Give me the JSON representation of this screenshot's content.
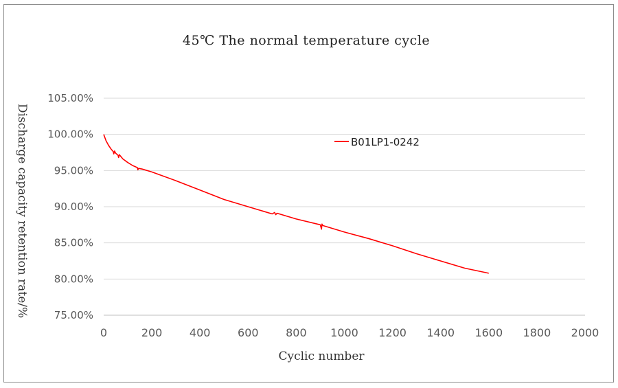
{
  "chart_data": {
    "type": "line",
    "title": "45℃ The normal temperature cycle",
    "xlabel": "Cyclic number",
    "ylabel": "Discharge capacity retention rate/%",
    "xlim": [
      0,
      2000
    ],
    "ylim": [
      75,
      105
    ],
    "x_ticks": [
      "0",
      "200",
      "400",
      "600",
      "800",
      "1000",
      "1200",
      "1400",
      "1600",
      "1800",
      "2000"
    ],
    "y_ticks": [
      "105.00%",
      "100.00%",
      "95.00%",
      "90.00%",
      "85.00%",
      "80.00%",
      "75.00%"
    ],
    "grid": true,
    "legend_position": "top-right",
    "series": [
      {
        "name": "B01LP1-0242",
        "color": "#ff0000",
        "x": [
          0,
          10,
          20,
          30,
          40,
          42,
          45,
          50,
          60,
          62,
          65,
          80,
          100,
          120,
          140,
          142,
          145,
          160,
          200,
          300,
          400,
          500,
          600,
          700,
          710,
          715,
          720,
          800,
          900,
          905,
          907,
          910,
          1000,
          1100,
          1200,
          1300,
          1400,
          1500,
          1600
        ],
        "values": [
          100.0,
          99.1,
          98.5,
          98.0,
          97.6,
          97.3,
          97.7,
          97.4,
          97.1,
          96.8,
          97.2,
          96.6,
          96.1,
          95.7,
          95.4,
          95.1,
          95.3,
          95.2,
          94.8,
          93.6,
          92.3,
          91.0,
          90.0,
          89.0,
          89.2,
          88.9,
          89.1,
          88.3,
          87.5,
          86.9,
          87.6,
          87.4,
          86.5,
          85.6,
          84.6,
          83.5,
          82.5,
          81.5,
          80.8
        ]
      }
    ]
  }
}
